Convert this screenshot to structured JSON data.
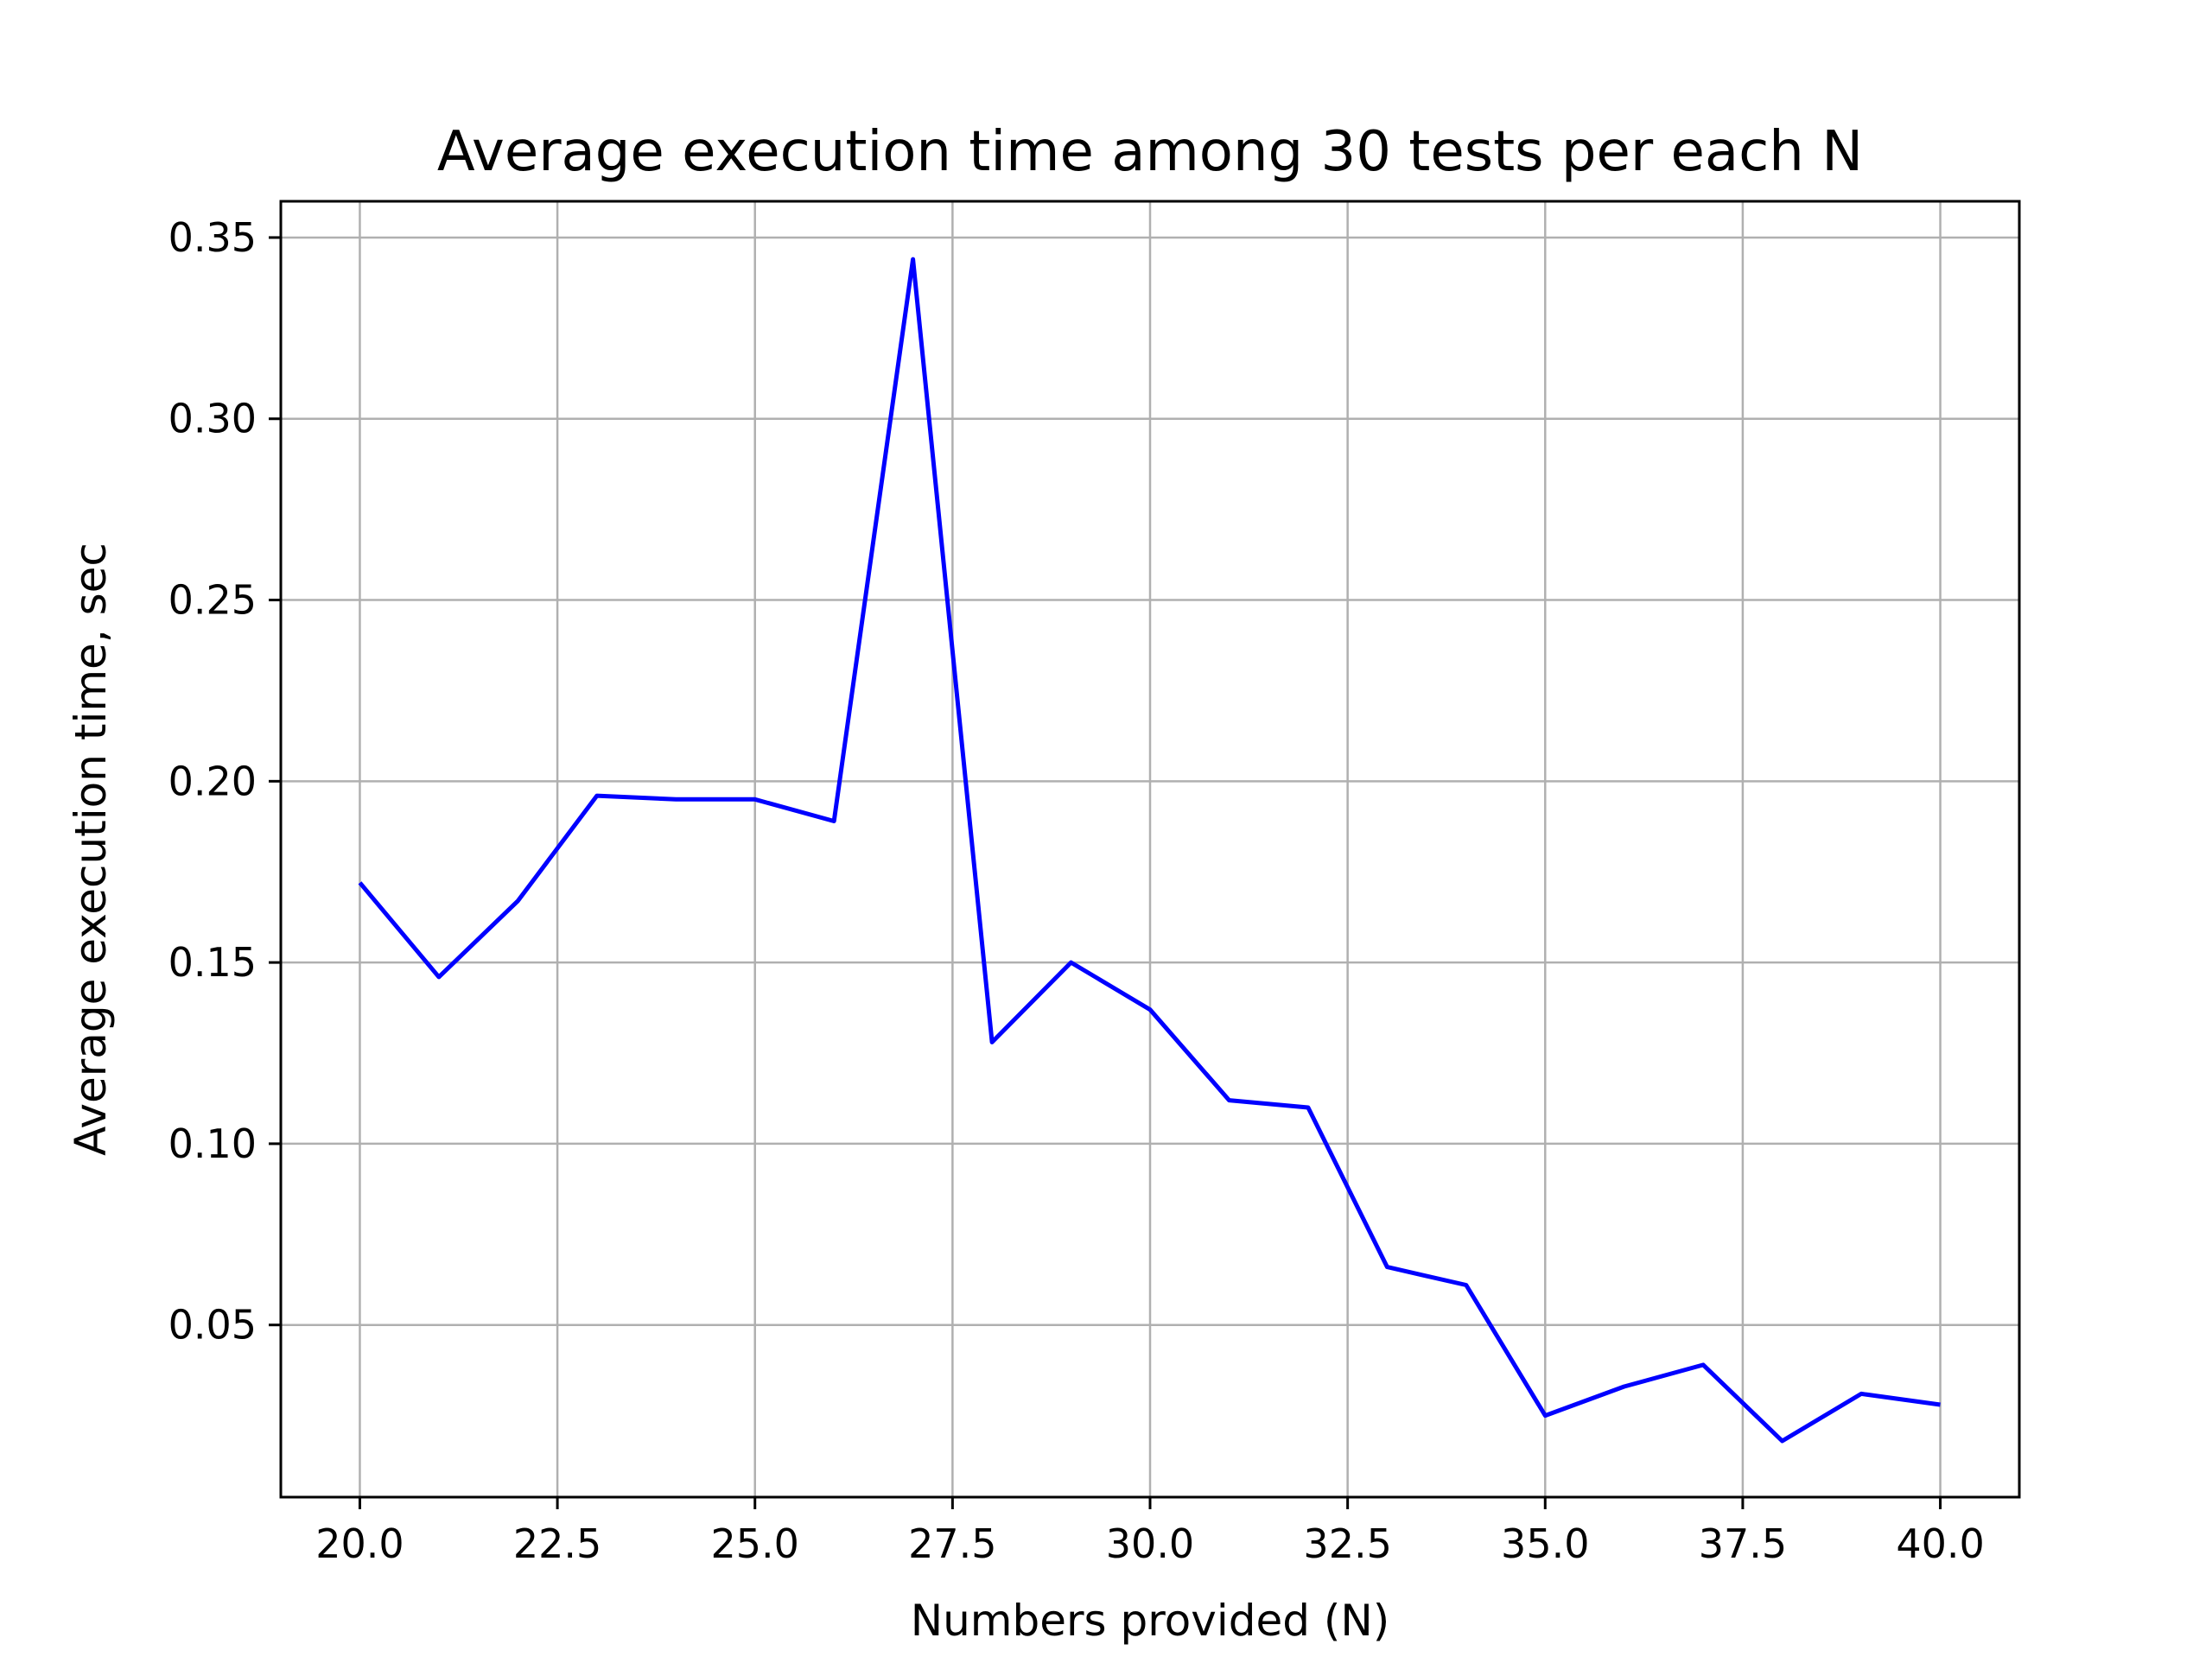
{
  "chart_data": {
    "type": "line",
    "title": "Average execution time among 30 tests per each N",
    "xlabel": "Numbers provided (N)",
    "ylabel": "Average execution time, sec",
    "xlim": [
      19.0,
      41.0
    ],
    "ylim": [
      0.0025,
      0.36
    ],
    "grid": true,
    "legend": "none",
    "x_ticks": [
      20.0,
      22.5,
      25.0,
      27.5,
      30.0,
      32.5,
      35.0,
      37.5,
      40.0
    ],
    "x_tick_labels": [
      "20.0",
      "22.5",
      "25.0",
      "27.5",
      "30.0",
      "32.5",
      "35.0",
      "37.5",
      "40.0"
    ],
    "y_ticks": [
      0.05,
      0.1,
      0.15,
      0.2,
      0.25,
      0.3,
      0.35
    ],
    "y_tick_labels": [
      "0.05",
      "0.10",
      "0.15",
      "0.20",
      "0.25",
      "0.30",
      "0.35"
    ],
    "series": [
      {
        "color": "#0000ff",
        "x": [
          20,
          21,
          22,
          23,
          24,
          25,
          26,
          27,
          28,
          29,
          30,
          31,
          32,
          33,
          34,
          35,
          36,
          37,
          38,
          39,
          40
        ],
        "values": [
          0.172,
          0.146,
          0.167,
          0.196,
          0.195,
          0.195,
          0.189,
          0.344,
          0.128,
          0.15,
          0.137,
          0.112,
          0.11,
          0.066,
          0.061,
          0.025,
          0.033,
          0.039,
          0.018,
          0.031,
          0.028
        ]
      }
    ]
  }
}
